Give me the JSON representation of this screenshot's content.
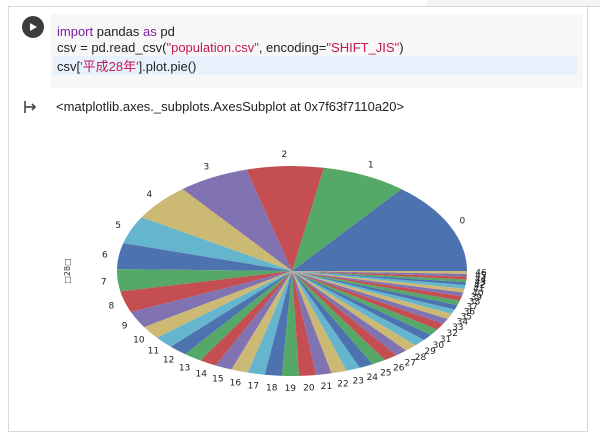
{
  "notebook": {
    "code_lines": [
      {
        "parts": [
          {
            "t": "import",
            "c": "kw"
          },
          {
            "t": " pandas ",
            "c": ""
          },
          {
            "t": "as",
            "c": "kw"
          },
          {
            "t": " pd",
            "c": ""
          }
        ]
      },
      {
        "parts": [
          {
            "t": "csv = pd.read_csv(",
            "c": ""
          },
          {
            "t": "\"population.csv\"",
            "c": "str"
          },
          {
            "t": ", encoding=",
            "c": ""
          },
          {
            "t": "\"SHIFT_JIS\"",
            "c": "str"
          },
          {
            "t": ")",
            "c": ""
          }
        ]
      },
      {
        "parts": [
          {
            "t": "csv[",
            "c": ""
          },
          {
            "t": "'平成28年'",
            "c": "str"
          },
          {
            "t": "].plot.pie()",
            "c": ""
          }
        ]
      }
    ],
    "output_text": "<matplotlib.axes._subplots.AxesSubplot at 0x7f63f7110a20>"
  },
  "chart_data": {
    "type": "pie",
    "ylabel": "□28□",
    "categories": [
      "0",
      "1",
      "2",
      "3",
      "4",
      "5",
      "6",
      "7",
      "8",
      "9",
      "10",
      "11",
      "12",
      "13",
      "14",
      "15",
      "16",
      "17",
      "18",
      "19",
      "20",
      "21",
      "22",
      "23",
      "24",
      "25",
      "26",
      "27",
      "28",
      "29",
      "30",
      "31",
      "32",
      "33",
      "34",
      "35",
      "36",
      "37",
      "38",
      "39",
      "40",
      "41",
      "42",
      "43",
      "44",
      "45",
      "46"
    ],
    "values": [
      100,
      55,
      50,
      46,
      40,
      30,
      28,
      24,
      23,
      18,
      14,
      13,
      12,
      12,
      11,
      11,
      11,
      11,
      11,
      11,
      11,
      10,
      10,
      9,
      9,
      9,
      9,
      8,
      8,
      8,
      7,
      7,
      7,
      6,
      6,
      5,
      5,
      5,
      5,
      4,
      4,
      4,
      3,
      3,
      3,
      3,
      3
    ],
    "colors": [
      "#4c72b0",
      "#55a868",
      "#c44e52",
      "#8172b2",
      "#ccb974",
      "#64b5cd"
    ]
  }
}
